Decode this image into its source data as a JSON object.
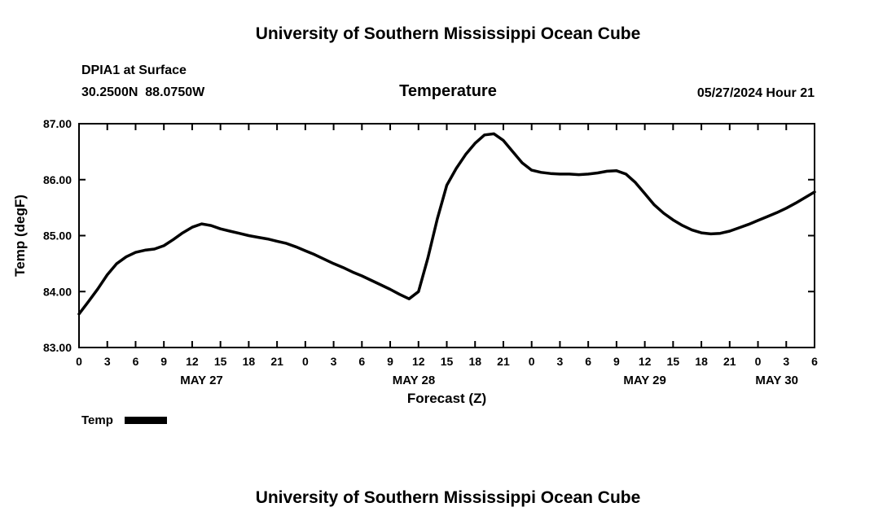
{
  "page": {
    "top_title": "University of Southern Mississippi Ocean Cube",
    "bottom_title": "University of Southern Mississippi Ocean Cube"
  },
  "header": {
    "station": "DPIA1 at Surface",
    "coords": "30.2500N  88.0750W",
    "chart_title": "Temperature",
    "run_time": "05/27/2024 Hour 21"
  },
  "legend": {
    "label": "Temp",
    "color": "#000000"
  },
  "chart_data": {
    "type": "line",
    "title": "Temperature",
    "xlabel": "Forecast (Z)",
    "ylabel": "Temp (degF)",
    "xlim": [
      0,
      78
    ],
    "ylim": [
      83.0,
      87.0
    ],
    "grid": false,
    "legend_position": "below-left",
    "y_ticks": [
      83,
      84,
      85,
      86,
      87
    ],
    "y_tick_labels": [
      "83.00",
      "84.00",
      "85.00",
      "86.00",
      "87.00"
    ],
    "x_ticks": [
      0,
      3,
      6,
      9,
      12,
      15,
      18,
      21,
      24,
      27,
      30,
      33,
      36,
      39,
      42,
      45,
      48,
      51,
      54,
      57,
      60,
      63,
      66,
      69,
      72,
      75,
      78
    ],
    "x_tick_labels": [
      "0",
      "3",
      "6",
      "9",
      "12",
      "15",
      "18",
      "21",
      "0",
      "3",
      "6",
      "9",
      "12",
      "15",
      "18",
      "21",
      "0",
      "3",
      "6",
      "9",
      "12",
      "15",
      "18",
      "21",
      "0",
      "3",
      "6"
    ],
    "day_labels": [
      {
        "label": "MAY 27",
        "center_hour": 13
      },
      {
        "label": "MAY 28",
        "center_hour": 35.5
      },
      {
        "label": "MAY 29",
        "center_hour": 60
      },
      {
        "label": "MAY 30",
        "center_hour": 74
      }
    ],
    "series": [
      {
        "name": "Temp",
        "color": "#000000",
        "x": [
          0,
          1,
          2,
          3,
          4,
          5,
          6,
          7,
          8,
          9,
          10,
          11,
          12,
          13,
          14,
          15,
          16,
          17,
          18,
          19,
          20,
          21,
          22,
          23,
          24,
          25,
          26,
          27,
          28,
          29,
          30,
          31,
          32,
          33,
          34,
          35,
          36,
          37,
          38,
          39,
          40,
          41,
          42,
          43,
          44,
          45,
          46,
          47,
          48,
          49,
          50,
          51,
          52,
          53,
          54,
          55,
          56,
          57,
          58,
          59,
          60,
          61,
          62,
          63,
          64,
          65,
          66,
          67,
          68,
          69,
          70,
          71,
          72,
          73,
          74,
          75,
          76,
          77,
          78
        ],
        "y": [
          83.6,
          83.82,
          84.05,
          84.3,
          84.5,
          84.62,
          84.7,
          84.74,
          84.76,
          84.82,
          84.93,
          85.05,
          85.15,
          85.21,
          85.18,
          85.12,
          85.08,
          85.04,
          85.0,
          84.97,
          84.94,
          84.9,
          84.86,
          84.8,
          84.73,
          84.66,
          84.58,
          84.5,
          84.43,
          84.35,
          84.28,
          84.2,
          84.12,
          84.04,
          83.95,
          83.87,
          84.0,
          84.6,
          85.3,
          85.9,
          86.2,
          86.45,
          86.65,
          86.8,
          86.82,
          86.7,
          86.5,
          86.3,
          86.17,
          86.13,
          86.11,
          86.1,
          86.1,
          86.09,
          86.1,
          86.12,
          86.15,
          86.16,
          86.1,
          85.95,
          85.75,
          85.55,
          85.4,
          85.28,
          85.18,
          85.1,
          85.05,
          85.03,
          85.04,
          85.08,
          85.14,
          85.2,
          85.27,
          85.34,
          85.41,
          85.49,
          85.58,
          85.68,
          85.78
        ]
      }
    ]
  }
}
